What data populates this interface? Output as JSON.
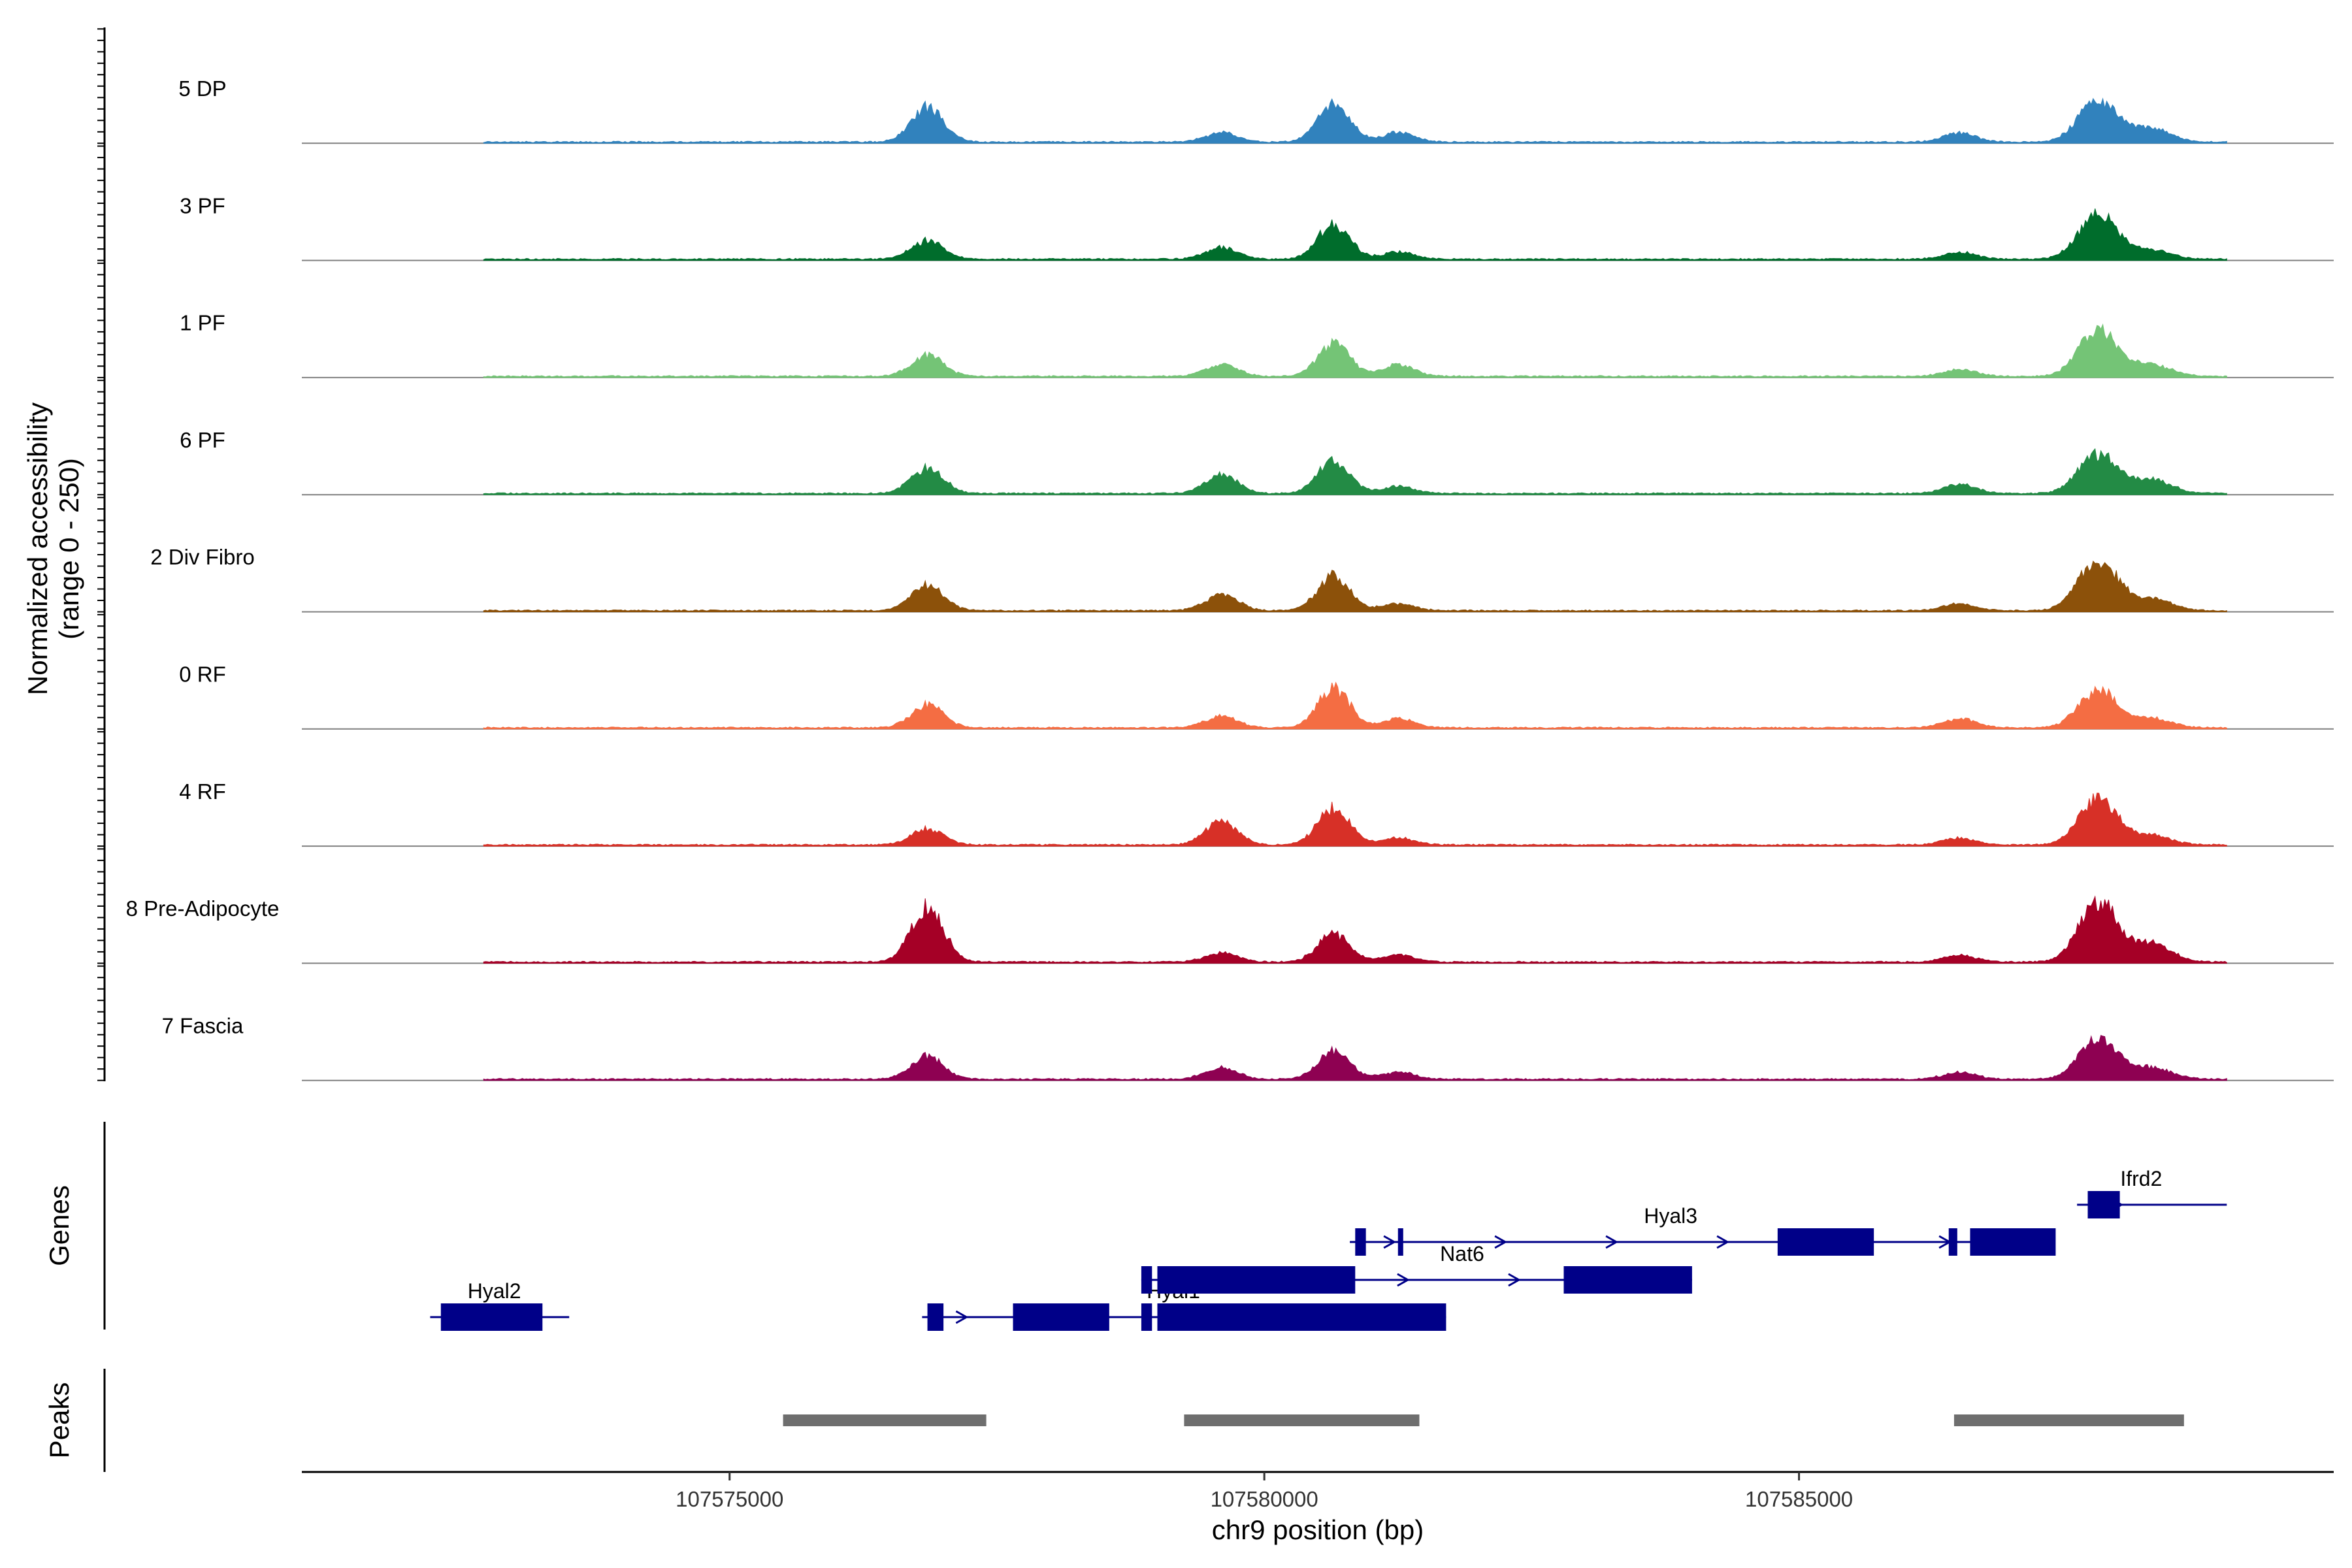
{
  "chart_data": {
    "type": "area",
    "title": "",
    "ylabel": "Normalized accessibility\n(range 0 - 250)",
    "ylabel_lines": [
      "Normalized accessibility",
      "(range 0 - 250)"
    ],
    "y_range": [
      0,
      250
    ],
    "xlabel": "chr9 position (bp)",
    "xlim": [
      107571000,
      107590000
    ],
    "x_ticks": [
      107575000,
      107580000,
      107585000
    ],
    "x_tick_labels": [
      "107575000",
      "107580000",
      "107585000"
    ],
    "panel_labels": {
      "genes": "Genes",
      "peaks": "Peaks"
    },
    "peak_centers": [
      107576850,
      107579600,
      107580650,
      107581250,
      107586500,
      107587800,
      107588300
    ],
    "series": [
      {
        "name": "5 DP",
        "color": "#3182BD",
        "peak_heights": [
          75,
          20,
          80,
          20,
          20,
          90,
          30
        ]
      },
      {
        "name": "3 PF",
        "color": "#006D2C",
        "peak_heights": [
          40,
          25,
          75,
          15,
          15,
          95,
          20
        ]
      },
      {
        "name": "1 PF",
        "color": "#74C476",
        "peak_heights": [
          45,
          25,
          70,
          25,
          15,
          100,
          25
        ]
      },
      {
        "name": "6 PF",
        "color": "#238B45",
        "peak_heights": [
          55,
          40,
          70,
          15,
          20,
          85,
          30
        ]
      },
      {
        "name": "2 Div Fibro",
        "color": "#8C510A",
        "peak_heights": [
          55,
          35,
          75,
          15,
          15,
          110,
          25
        ]
      },
      {
        "name": "0 RF",
        "color": "#F46D43",
        "peak_heights": [
          50,
          25,
          85,
          20,
          20,
          80,
          20
        ]
      },
      {
        "name": "4 RF",
        "color": "#D73027",
        "peak_heights": [
          35,
          50,
          80,
          15,
          15,
          100,
          20
        ]
      },
      {
        "name": "8 Pre-Adipocyte",
        "color": "#A50026",
        "peak_heights": [
          120,
          20,
          60,
          15,
          15,
          130,
          40
        ]
      },
      {
        "name": "7 Fascia",
        "color": "#8E0152",
        "peak_heights": [
          50,
          25,
          60,
          15,
          15,
          85,
          25
        ]
      }
    ],
    "genes": [
      {
        "name": "Hyal2",
        "start": 107572200,
        "end": 107573500,
        "strand": "-",
        "row": 3,
        "exons": [
          [
            107572300,
            107573250
          ]
        ]
      },
      {
        "name": "Hyal1",
        "start": 107576800,
        "end": 107581700,
        "strand": "+",
        "row": 3,
        "exons": [
          [
            107576850,
            107577000
          ],
          [
            107577650,
            107578550
          ],
          [
            107578850,
            107578950
          ],
          [
            107579000,
            107581700
          ]
        ]
      },
      {
        "name": "Nat6",
        "start": 107578850,
        "end": 107584000,
        "strand": "+",
        "row": 2,
        "exons": [
          [
            107578850,
            107578950
          ],
          [
            107579000,
            107580850
          ],
          [
            107582800,
            107584000
          ]
        ]
      },
      {
        "name": "Hyal3",
        "start": 107580800,
        "end": 107587300,
        "strand": "+",
        "row": 1,
        "exons": [
          [
            107580850,
            107580950
          ],
          [
            107581250,
            107581280
          ],
          [
            107584800,
            107585700
          ],
          [
            107586400,
            107586480
          ],
          [
            107586600,
            107587400
          ]
        ]
      },
      {
        "name": "Ifrd2",
        "start": 107587600,
        "end": 107589000,
        "strand": "+",
        "row": 0,
        "exons": [
          [
            107587700,
            107588000
          ]
        ]
      }
    ],
    "peaks": [
      [
        107575500,
        107577400
      ],
      [
        107579250,
        107581450
      ],
      [
        107586450,
        107588600
      ]
    ]
  }
}
